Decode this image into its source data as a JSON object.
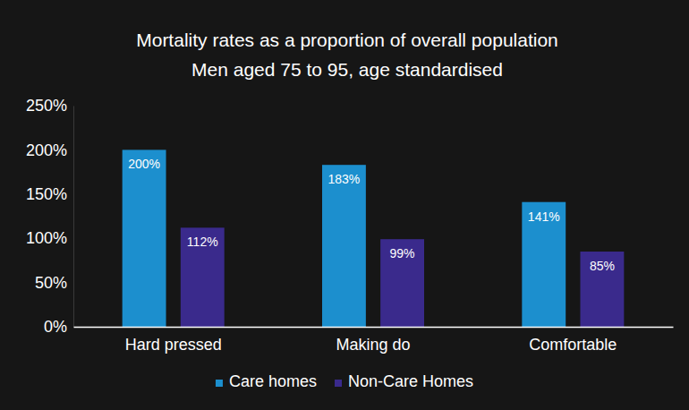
{
  "chart_data": {
    "type": "bar",
    "title": "Mortality rates as a proportion of overall population",
    "subtitle": "Men aged 75 to 95, age standardised",
    "categories": [
      "Hard pressed",
      "Making do",
      "Comfortable"
    ],
    "series": [
      {
        "name": "Care homes",
        "color": "#1c8fce",
        "values": [
          200,
          183,
          141
        ],
        "value_labels": [
          "200%",
          "183%",
          "141%"
        ]
      },
      {
        "name": "Non-Care Homes",
        "color": "#3a2a8c",
        "values": [
          112,
          99,
          85
        ],
        "value_labels": [
          "112%",
          "99%",
          "85%"
        ]
      }
    ],
    "ylim": [
      0,
      250
    ],
    "yticks": [
      {
        "value": 0,
        "label": "0%"
      },
      {
        "value": 50,
        "label": "50%"
      },
      {
        "value": 100,
        "label": "100%"
      },
      {
        "value": 150,
        "label": "150%"
      },
      {
        "value": 200,
        "label": "200%"
      },
      {
        "value": 250,
        "label": "250%"
      }
    ],
    "grid": false,
    "data_labels": true,
    "legend": "bottom"
  }
}
